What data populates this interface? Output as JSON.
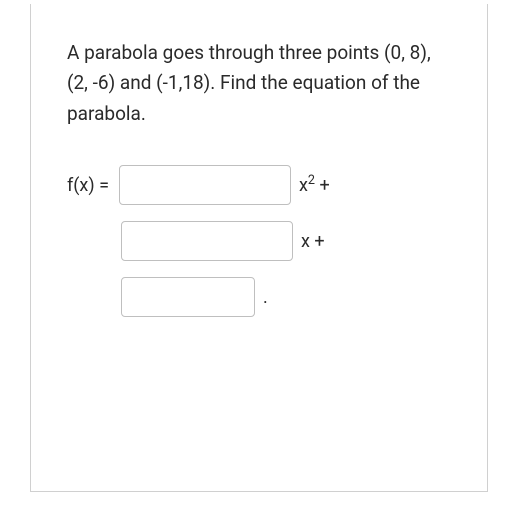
{
  "card": {
    "prompt": "A parabola goes through three points (0, 8), (2, -6) and (-1,18). Find the equation of the parabola."
  },
  "equation": {
    "prefix": "f(x) =",
    "coeff_a_value": "",
    "term_a": "x",
    "term_a_exp": "2",
    "plus1": " +",
    "coeff_b_value": "",
    "term_b": "x +",
    "coeff_c_value": "",
    "period": "."
  },
  "styling": {
    "border_color": "#d0d0d0",
    "input_border_color": "#bfbfbf",
    "text_color": "#2a2a2a",
    "background_color": "#ffffff",
    "prompt_fontsize": 19,
    "label_fontsize": 18,
    "input_height": 40,
    "input_radius": 4
  }
}
